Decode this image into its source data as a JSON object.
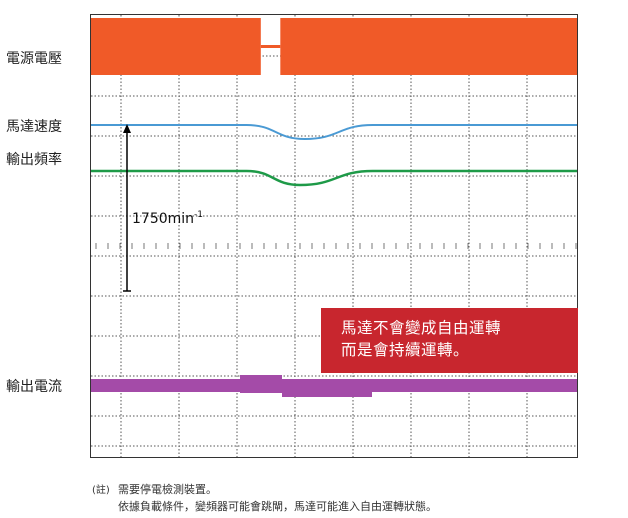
{
  "chart_data": {
    "type": "line",
    "title": "",
    "xlabel": "",
    "ylabel": "",
    "grid": true,
    "series": [
      {
        "name": "電源電壓",
        "color": "#f05a28",
        "style": "band",
        "description_values": {
          "dropout_start": 0.35,
          "dropout_end": 0.39
        }
      },
      {
        "name": "馬達速度",
        "color": "#4a9ad4",
        "style": "line",
        "x": [
          0,
          0.32,
          0.44,
          0.58,
          1
        ],
        "y": [
          1,
          1,
          0.92,
          1,
          1
        ]
      },
      {
        "name": "輸出頻率",
        "color": "#1e9a48",
        "style": "line",
        "x": [
          0,
          0.32,
          0.43,
          0.58,
          1
        ],
        "y": [
          1,
          1,
          0.92,
          1,
          1
        ]
      },
      {
        "name": "輸出電流",
        "color": "#a44ba8",
        "style": "band"
      }
    ],
    "annotations": [
      {
        "text": "1750min",
        "superscript": "-1"
      }
    ]
  },
  "labels": {
    "power_voltage": "電源電壓",
    "motor_speed": "馬達速度",
    "output_frequency": "輸出頻率",
    "output_current": "輸出電流"
  },
  "callout": {
    "line1": "馬達不會變成自由運轉",
    "line2": "而是會持續運轉。",
    "color": "#c8262e"
  },
  "notes": {
    "prefix": "(註)",
    "line1": "需要停電檢測裝置。",
    "line2": "依據負載條件，變頻器可能會跳閘，馬達可能進入自由運轉狀態。"
  }
}
